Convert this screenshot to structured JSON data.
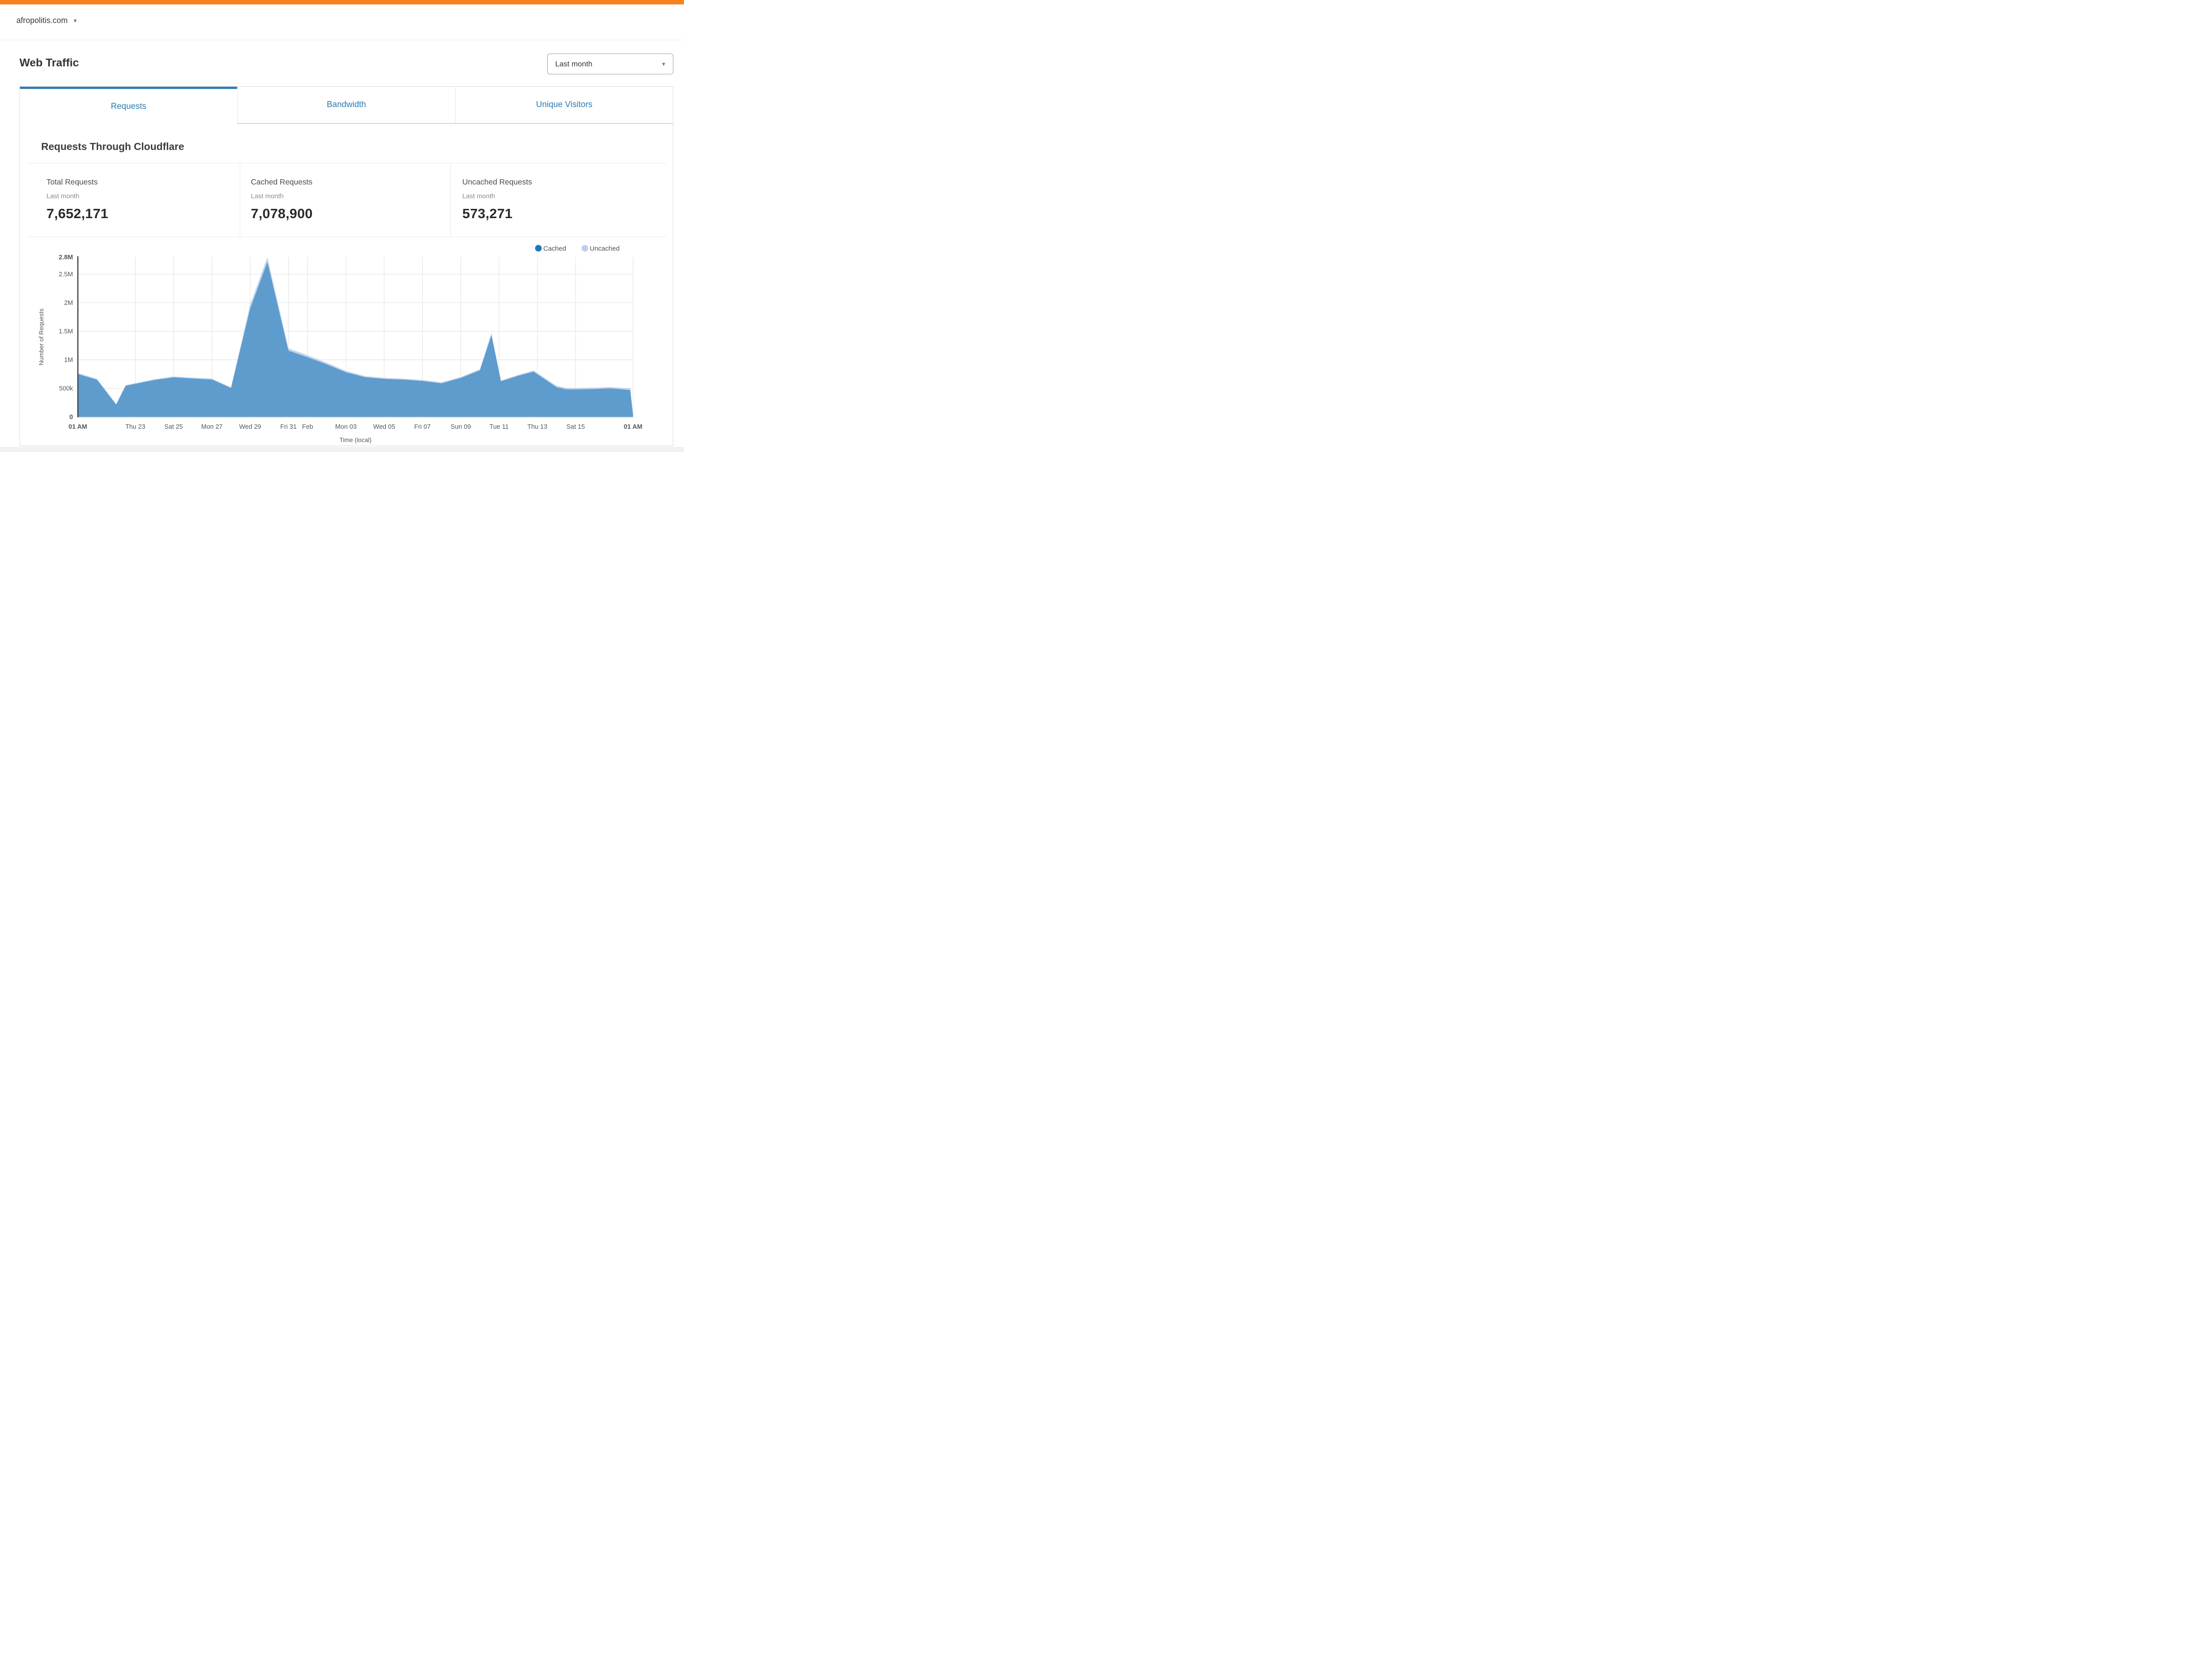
{
  "brand": {
    "topbar_color": "#f6821f",
    "accent_blue": "#2e7cb3"
  },
  "header": {
    "domain": "afropolitis.com"
  },
  "page": {
    "title": "Web Traffic"
  },
  "period_selector": {
    "value": "Last month"
  },
  "tabs": [
    {
      "label": "Requests",
      "active": true
    },
    {
      "label": "Bandwidth",
      "active": false
    },
    {
      "label": "Unique Visitors",
      "active": false
    }
  ],
  "section": {
    "title": "Requests Through Cloudflare"
  },
  "stats": [
    {
      "label": "Total Requests",
      "period": "Last month",
      "value": "7,652,171"
    },
    {
      "label": "Cached Requests",
      "period": "Last month",
      "value": "7,078,900"
    },
    {
      "label": "Uncached Requests",
      "period": "Last month",
      "value": "573,271"
    }
  ],
  "chart_data": {
    "type": "area",
    "stacked": true,
    "title": "Requests Through Cloudflare",
    "xlabel": "Time (local)",
    "ylabel": "Number of Requests",
    "ylim": [
      0,
      2800000
    ],
    "x_domain_days": [
      0,
      29
    ],
    "grid": true,
    "legend_position": "top-right",
    "series": [
      {
        "name": "Cached",
        "area_color": "#5e9cce",
        "area_opacity": 1,
        "dot_color": "#1f78b5"
      },
      {
        "name": "Uncached",
        "area_color": "#94b5de",
        "area_opacity": 0.55,
        "dot_color": "#bccfee"
      }
    ],
    "y_ticks": [
      {
        "value": 0,
        "label": "0",
        "bold": true,
        "gridline": false
      },
      {
        "value": 500000,
        "label": "500k",
        "bold": false,
        "gridline": true
      },
      {
        "value": 1000000,
        "label": "1M",
        "bold": false,
        "gridline": true
      },
      {
        "value": 1500000,
        "label": "1.5M",
        "bold": false,
        "gridline": true
      },
      {
        "value": 2000000,
        "label": "2M",
        "bold": false,
        "gridline": true
      },
      {
        "value": 2500000,
        "label": "2.5M",
        "bold": false,
        "gridline": true
      },
      {
        "value": 2800000,
        "label": "2.8M",
        "bold": true,
        "gridline": false
      }
    ],
    "x_ticks": [
      {
        "day": 0,
        "label": "01 AM",
        "bold": true,
        "gridline": false
      },
      {
        "day": 3,
        "label": "Thu 23",
        "bold": false,
        "gridline": true
      },
      {
        "day": 5,
        "label": "Sat 25",
        "bold": false,
        "gridline": true
      },
      {
        "day": 7,
        "label": "Mon 27",
        "bold": false,
        "gridline": true
      },
      {
        "day": 9,
        "label": "Wed 29",
        "bold": false,
        "gridline": true
      },
      {
        "day": 11,
        "label": "Fri 31",
        "bold": false,
        "gridline": true
      },
      {
        "day": 12,
        "label": "Feb",
        "bold": false,
        "gridline": true
      },
      {
        "day": 14,
        "label": "Mon 03",
        "bold": false,
        "gridline": true
      },
      {
        "day": 16,
        "label": "Wed 05",
        "bold": false,
        "gridline": true
      },
      {
        "day": 18,
        "label": "Fri 07",
        "bold": false,
        "gridline": true
      },
      {
        "day": 20,
        "label": "Sun 09",
        "bold": false,
        "gridline": true
      },
      {
        "day": 22,
        "label": "Tue 11",
        "bold": false,
        "gridline": true
      },
      {
        "day": 24,
        "label": "Thu 13",
        "bold": false,
        "gridline": true
      },
      {
        "day": 26,
        "label": "Sat 15",
        "bold": false,
        "gridline": true
      },
      {
        "day": 29,
        "label": "01 AM",
        "bold": true,
        "gridline": true
      }
    ],
    "points_format": [
      "day",
      "cached_requests",
      "uncached_requests"
    ],
    "points": [
      [
        0,
        750000,
        18000
      ],
      [
        1,
        650000,
        15000
      ],
      [
        2,
        215000,
        10000
      ],
      [
        2.5,
        545000,
        12000
      ],
      [
        3,
        578000,
        12000
      ],
      [
        4,
        645000,
        14000
      ],
      [
        5,
        692000,
        15000
      ],
      [
        6,
        672000,
        15000
      ],
      [
        7,
        655000,
        15000
      ],
      [
        8,
        505000,
        12000
      ],
      [
        9,
        1900000,
        70000
      ],
      [
        9.9,
        2715000,
        85000
      ],
      [
        11,
        1160000,
        40000
      ],
      [
        12,
        1045000,
        35000
      ],
      [
        13,
        920000,
        30000
      ],
      [
        14,
        780000,
        25000
      ],
      [
        15,
        695000,
        20000
      ],
      [
        16,
        665000,
        18000
      ],
      [
        17,
        652000,
        18000
      ],
      [
        18,
        628000,
        18000
      ],
      [
        19,
        588000,
        16000
      ],
      [
        20,
        680000,
        18000
      ],
      [
        21,
        815000,
        20000
      ],
      [
        21.6,
        1430000,
        40000
      ],
      [
        22.1,
        622000,
        16000
      ],
      [
        23,
        718000,
        18000
      ],
      [
        23.8,
        792000,
        20000
      ],
      [
        25,
        520000,
        25000
      ],
      [
        25.5,
        482000,
        25000
      ],
      [
        26,
        480000,
        25000
      ],
      [
        27,
        486000,
        25000
      ],
      [
        27.8,
        498000,
        25000
      ],
      [
        28.5,
        480000,
        25000
      ],
      [
        28.85,
        470000,
        28000
      ],
      [
        29,
        15000,
        30000
      ]
    ]
  }
}
